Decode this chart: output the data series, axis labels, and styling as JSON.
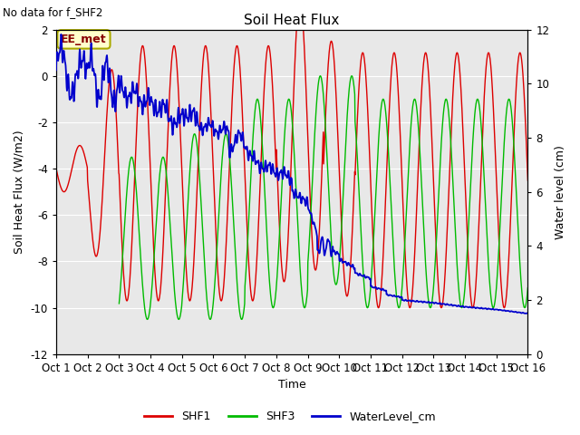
{
  "title": "Soil Heat Flux",
  "top_left_text": "No data for f_SHF2",
  "ylabel_left": "Soil Heat Flux (W/m2)",
  "ylabel_right": "Water level (cm)",
  "xlabel": "Time",
  "ylim_left": [
    -12,
    2
  ],
  "ylim_right": [
    0,
    12
  ],
  "yticks_left": [
    -12,
    -10,
    -8,
    -6,
    -4,
    -2,
    0,
    2
  ],
  "yticks_right": [
    0,
    2,
    4,
    6,
    8,
    10,
    12
  ],
  "xtick_labels": [
    "Oct 1",
    "Oct 2",
    "Oct 3",
    "Oct 4",
    "Oct 5",
    "Oct 6",
    "Oct 7",
    "Oct 8",
    "Oct 9",
    "Oct 10",
    "Oct 11",
    "Oct 12",
    "Oct 13",
    "Oct 14",
    "Oct 15",
    "Oct 16"
  ],
  "n_days": 15,
  "colors": {
    "SHF1": "#dd0000",
    "SHF3": "#00bb00",
    "WaterLevel": "#0000cc",
    "background": "#e8e8e8",
    "grid": "#ffffff",
    "ee_met_box_bg": "#ffffcc",
    "ee_met_box_border": "#aaaa00"
  },
  "legend": [
    "SHF1",
    "SHF3",
    "WaterLevel_cm"
  ],
  "ee_met_label": "EE_met"
}
